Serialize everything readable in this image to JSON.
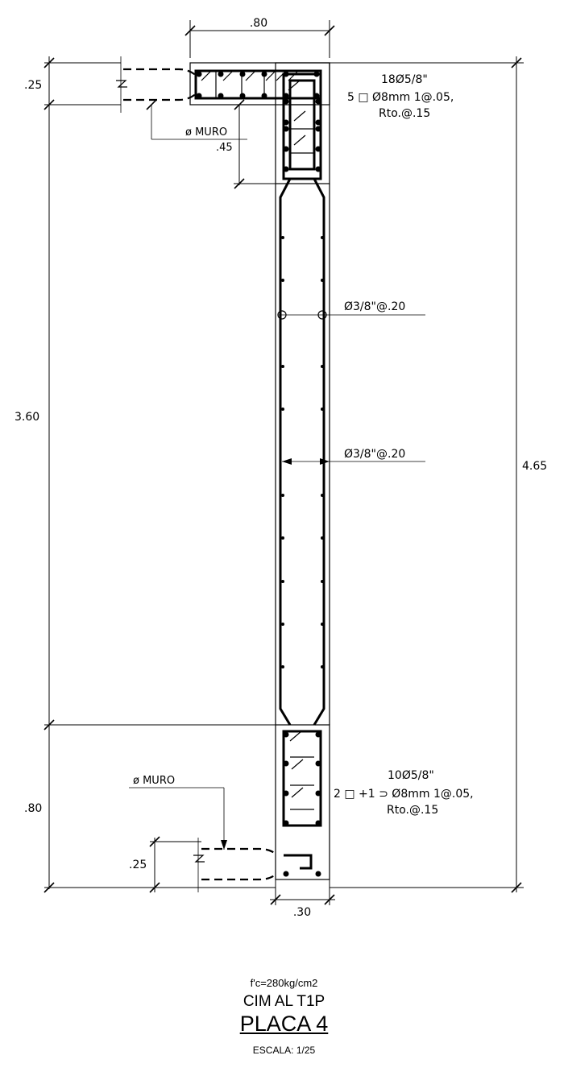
{
  "drawing": {
    "dimensions": {
      "top_width": ".80",
      "top_flange": ".25",
      "muro_top": "ø MURO",
      "muro_top_depth": ".45",
      "total_height": "3.60",
      "overall_height": "4.65",
      "bottom_height": ".80",
      "muro_bottom": "ø MURO",
      "bottom_flange": ".25",
      "bottom_width": ".30"
    },
    "notes": {
      "top_bars": "18Ø5/8\"",
      "top_stirrups": "5 □ Ø8mm  1@.05,",
      "top_rest": "Rto.@.15",
      "web_vertical": "Ø3/8\"@.20",
      "web_horizontal": "Ø3/8\"@.20",
      "bottom_bars": "10Ø5/8\"",
      "bottom_stirrups": "2 □ +1 ⊃ Ø8mm  1@.05,",
      "bottom_rest": "Rto.@.15"
    }
  },
  "title_block": {
    "spec": "f'c=280kg/cm2",
    "name": "CIM AL T1P",
    "placa": "PLACA 4",
    "escala": "ESCALA:  1/25"
  }
}
